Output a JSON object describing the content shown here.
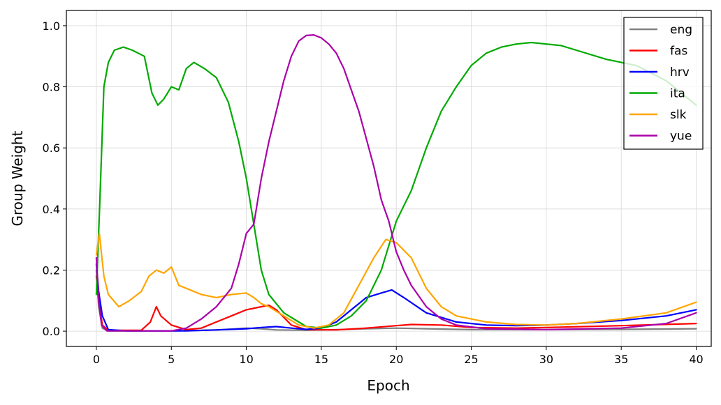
{
  "chart_data": {
    "type": "line",
    "title": "",
    "xlabel": "Epoch",
    "ylabel": "Group Weight",
    "xlim": [
      -2,
      41
    ],
    "ylim": [
      -0.05,
      1.05
    ],
    "xticks": [
      0,
      5,
      10,
      15,
      20,
      25,
      30,
      35,
      40
    ],
    "xtick_labels": [
      "0",
      "5",
      "10",
      "15",
      "20",
      "25",
      "30",
      "35",
      "40"
    ],
    "yticks": [
      0.0,
      0.2,
      0.4,
      0.6,
      0.8,
      1.0
    ],
    "ytick_labels": [
      "0.0",
      "0.2",
      "0.4",
      "0.6",
      "0.8",
      "1.0"
    ],
    "grid": true,
    "legend_position": "top-right",
    "series": [
      {
        "name": "eng",
        "color": "#808080",
        "points": [
          [
            0,
            0.2
          ],
          [
            0.15,
            0.08
          ],
          [
            0.4,
            0.01
          ],
          [
            0.8,
            0.001
          ],
          [
            5,
            0.001
          ],
          [
            8,
            0.004
          ],
          [
            10,
            0.01
          ],
          [
            11,
            0.008
          ],
          [
            12,
            0.004
          ],
          [
            14,
            0.003
          ],
          [
            16,
            0.005
          ],
          [
            18,
            0.008
          ],
          [
            20,
            0.01
          ],
          [
            22,
            0.008
          ],
          [
            25,
            0.005
          ],
          [
            30,
            0.005
          ],
          [
            35,
            0.006
          ],
          [
            40,
            0.008
          ]
        ]
      },
      {
        "name": "fas",
        "color": "#ff0000",
        "points": [
          [
            0,
            0.18
          ],
          [
            0.15,
            0.1
          ],
          [
            0.4,
            0.02
          ],
          [
            0.8,
            0.003
          ],
          [
            3,
            0.003
          ],
          [
            3.6,
            0.03
          ],
          [
            4,
            0.08
          ],
          [
            4.3,
            0.05
          ],
          [
            5,
            0.02
          ],
          [
            6,
            0.005
          ],
          [
            7,
            0.01
          ],
          [
            8,
            0.03
          ],
          [
            9,
            0.05
          ],
          [
            10,
            0.07
          ],
          [
            11,
            0.08
          ],
          [
            11.5,
            0.085
          ],
          [
            12,
            0.07
          ],
          [
            13,
            0.02
          ],
          [
            14,
            0.005
          ],
          [
            16,
            0.004
          ],
          [
            18,
            0.01
          ],
          [
            20,
            0.018
          ],
          [
            21,
            0.022
          ],
          [
            23,
            0.02
          ],
          [
            25,
            0.012
          ],
          [
            28,
            0.01
          ],
          [
            30,
            0.012
          ],
          [
            35,
            0.018
          ],
          [
            40,
            0.025
          ]
        ]
      },
      {
        "name": "hrv",
        "color": "#0000ff",
        "points": [
          [
            0,
            0.22
          ],
          [
            0.15,
            0.13
          ],
          [
            0.4,
            0.05
          ],
          [
            0.8,
            0.005
          ],
          [
            2,
            0.001
          ],
          [
            6,
            0.001
          ],
          [
            8,
            0.004
          ],
          [
            10,
            0.008
          ],
          [
            11,
            0.012
          ],
          [
            12,
            0.015
          ],
          [
            13,
            0.01
          ],
          [
            14,
            0.006
          ],
          [
            15,
            0.01
          ],
          [
            16,
            0.03
          ],
          [
            17,
            0.07
          ],
          [
            18,
            0.11
          ],
          [
            19,
            0.125
          ],
          [
            19.7,
            0.135
          ],
          [
            20.5,
            0.11
          ],
          [
            22,
            0.06
          ],
          [
            24,
            0.03
          ],
          [
            26,
            0.02
          ],
          [
            28,
            0.018
          ],
          [
            30,
            0.02
          ],
          [
            32,
            0.025
          ],
          [
            35,
            0.035
          ],
          [
            38,
            0.05
          ],
          [
            40,
            0.07
          ]
        ]
      },
      {
        "name": "ita",
        "color": "#00aa00",
        "points": [
          [
            0,
            0.12
          ],
          [
            0.25,
            0.45
          ],
          [
            0.5,
            0.8
          ],
          [
            0.8,
            0.88
          ],
          [
            1.2,
            0.92
          ],
          [
            1.8,
            0.93
          ],
          [
            2.4,
            0.92
          ],
          [
            3.2,
            0.9
          ],
          [
            3.7,
            0.78
          ],
          [
            4.1,
            0.74
          ],
          [
            4.5,
            0.76
          ],
          [
            5,
            0.8
          ],
          [
            5.5,
            0.79
          ],
          [
            6,
            0.86
          ],
          [
            6.5,
            0.88
          ],
          [
            7.2,
            0.86
          ],
          [
            8,
            0.83
          ],
          [
            8.8,
            0.75
          ],
          [
            9.5,
            0.62
          ],
          [
            10,
            0.5
          ],
          [
            10.5,
            0.35
          ],
          [
            11,
            0.2
          ],
          [
            11.5,
            0.12
          ],
          [
            12.5,
            0.06
          ],
          [
            14,
            0.015
          ],
          [
            15,
            0.01
          ],
          [
            16,
            0.02
          ],
          [
            17,
            0.05
          ],
          [
            18,
            0.1
          ],
          [
            19,
            0.2
          ],
          [
            20,
            0.36
          ],
          [
            21,
            0.46
          ],
          [
            22,
            0.6
          ],
          [
            23,
            0.72
          ],
          [
            24,
            0.8
          ],
          [
            25,
            0.87
          ],
          [
            26,
            0.91
          ],
          [
            27,
            0.93
          ],
          [
            28,
            0.94
          ],
          [
            29,
            0.945
          ],
          [
            30,
            0.94
          ],
          [
            31,
            0.935
          ],
          [
            32,
            0.92
          ],
          [
            34,
            0.89
          ],
          [
            36,
            0.87
          ],
          [
            38,
            0.82
          ],
          [
            40,
            0.74
          ]
        ]
      },
      {
        "name": "slk",
        "color": "#ffa500",
        "points": [
          [
            0,
            0.25
          ],
          [
            0.2,
            0.32
          ],
          [
            0.5,
            0.18
          ],
          [
            0.8,
            0.12
          ],
          [
            1.5,
            0.08
          ],
          [
            2.2,
            0.1
          ],
          [
            3,
            0.13
          ],
          [
            3.5,
            0.18
          ],
          [
            4,
            0.2
          ],
          [
            4.5,
            0.19
          ],
          [
            5,
            0.21
          ],
          [
            5.5,
            0.15
          ],
          [
            6,
            0.14
          ],
          [
            7,
            0.12
          ],
          [
            8,
            0.11
          ],
          [
            9,
            0.12
          ],
          [
            10,
            0.125
          ],
          [
            10.5,
            0.11
          ],
          [
            11,
            0.09
          ],
          [
            11.5,
            0.08
          ],
          [
            12.5,
            0.05
          ],
          [
            13.5,
            0.02
          ],
          [
            14.5,
            0.01
          ],
          [
            15.5,
            0.02
          ],
          [
            16.5,
            0.06
          ],
          [
            17.5,
            0.15
          ],
          [
            18.5,
            0.24
          ],
          [
            19.3,
            0.3
          ],
          [
            20,
            0.29
          ],
          [
            21,
            0.24
          ],
          [
            22,
            0.14
          ],
          [
            23,
            0.08
          ],
          [
            24,
            0.05
          ],
          [
            26,
            0.03
          ],
          [
            28,
            0.022
          ],
          [
            30,
            0.02
          ],
          [
            32,
            0.025
          ],
          [
            35,
            0.04
          ],
          [
            38,
            0.06
          ],
          [
            40,
            0.095
          ]
        ]
      },
      {
        "name": "yue",
        "color": "#aa00aa",
        "points": [
          [
            0,
            0.24
          ],
          [
            0.15,
            0.1
          ],
          [
            0.35,
            0.02
          ],
          [
            0.7,
            0.001
          ],
          [
            5,
            0.001
          ],
          [
            6,
            0.01
          ],
          [
            7,
            0.04
          ],
          [
            8,
            0.08
          ],
          [
            9,
            0.14
          ],
          [
            9.5,
            0.22
          ],
          [
            10,
            0.32
          ],
          [
            10.5,
            0.35
          ],
          [
            11,
            0.5
          ],
          [
            11.5,
            0.62
          ],
          [
            12,
            0.72
          ],
          [
            12.5,
            0.82
          ],
          [
            13,
            0.9
          ],
          [
            13.5,
            0.95
          ],
          [
            14,
            0.968
          ],
          [
            14.5,
            0.97
          ],
          [
            15,
            0.96
          ],
          [
            15.5,
            0.94
          ],
          [
            16,
            0.91
          ],
          [
            16.5,
            0.86
          ],
          [
            17,
            0.79
          ],
          [
            17.5,
            0.72
          ],
          [
            18,
            0.63
          ],
          [
            18.5,
            0.54
          ],
          [
            19,
            0.43
          ],
          [
            19.5,
            0.36
          ],
          [
            20,
            0.26
          ],
          [
            20.5,
            0.2
          ],
          [
            21,
            0.15
          ],
          [
            22,
            0.08
          ],
          [
            23,
            0.04
          ],
          [
            24,
            0.02
          ],
          [
            26,
            0.008
          ],
          [
            30,
            0.005
          ],
          [
            35,
            0.01
          ],
          [
            38,
            0.025
          ],
          [
            40,
            0.06
          ]
        ]
      }
    ]
  }
}
